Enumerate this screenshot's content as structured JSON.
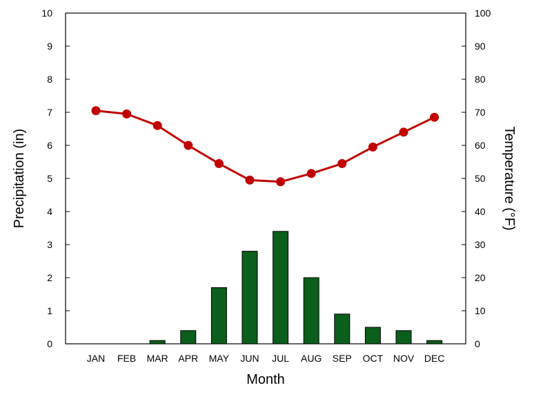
{
  "chart_data": {
    "type": "bar+line",
    "categories": [
      "JAN",
      "FEB",
      "MAR",
      "APR",
      "MAY",
      "JUN",
      "JUL",
      "AUG",
      "SEP",
      "OCT",
      "NOV",
      "DEC"
    ],
    "xlabel": "Month",
    "y_left": {
      "label": "Precipitation (in)",
      "lim": [
        0,
        10
      ],
      "ticks": [
        0,
        1,
        2,
        3,
        4,
        5,
        6,
        7,
        8,
        9,
        10
      ]
    },
    "y_right": {
      "label": "Temperature (°F)",
      "lim": [
        0,
        100
      ],
      "ticks": [
        0,
        10,
        20,
        30,
        40,
        50,
        60,
        70,
        80,
        90,
        100
      ]
    },
    "series": [
      {
        "type": "bar",
        "axis": "left",
        "color": "#0b5e1c",
        "values": [
          0,
          0,
          0.1,
          0.4,
          1.7,
          2.8,
          3.4,
          2.0,
          0.9,
          0.5,
          0.4,
          0.1
        ]
      },
      {
        "type": "line",
        "axis": "right",
        "color": "#c00000",
        "values": [
          70.5,
          69.5,
          66,
          60,
          54.5,
          49.5,
          49,
          51.5,
          54.5,
          59.5,
          64,
          68.5
        ]
      }
    ],
    "grid": false,
    "legend": "none"
  }
}
